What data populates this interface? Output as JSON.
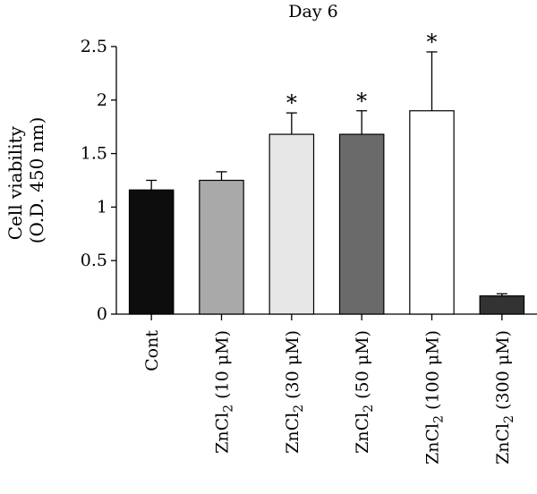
{
  "chart_data": {
    "type": "bar",
    "title": "Day 6",
    "ylabel": [
      "Cell viability",
      "(O.D. 450 nm)"
    ],
    "ylim": [
      0,
      2.5
    ],
    "yticks": [
      "0",
      "0.5",
      "1",
      "1.5",
      "2",
      "2.5"
    ],
    "grid": false,
    "categories": [
      {
        "prefix": "Cont",
        "sub": "",
        "suffix": ""
      },
      {
        "prefix": "ZnCl",
        "sub": "2",
        "suffix": " (10 μM)"
      },
      {
        "prefix": "ZnCl",
        "sub": "2",
        "suffix": " (30 μM)"
      },
      {
        "prefix": "ZnCl",
        "sub": "2",
        "suffix": " (50 μM)"
      },
      {
        "prefix": "ZnCl",
        "sub": "2",
        "suffix": " (100 μM)"
      },
      {
        "prefix": "ZnCl",
        "sub": "2",
        "suffix": " (300 μM)"
      }
    ],
    "values": [
      1.16,
      1.25,
      1.68,
      1.68,
      1.9,
      0.17
    ],
    "errors": [
      0.09,
      0.08,
      0.2,
      0.22,
      0.55,
      0.02
    ],
    "significance": [
      "",
      "",
      "*",
      "*",
      "*",
      ""
    ],
    "colors": [
      "#0d0d0d",
      "#a9a9a9",
      "#e6e6e6",
      "#6a6a6a",
      "#ffffff",
      "#333333"
    ]
  }
}
